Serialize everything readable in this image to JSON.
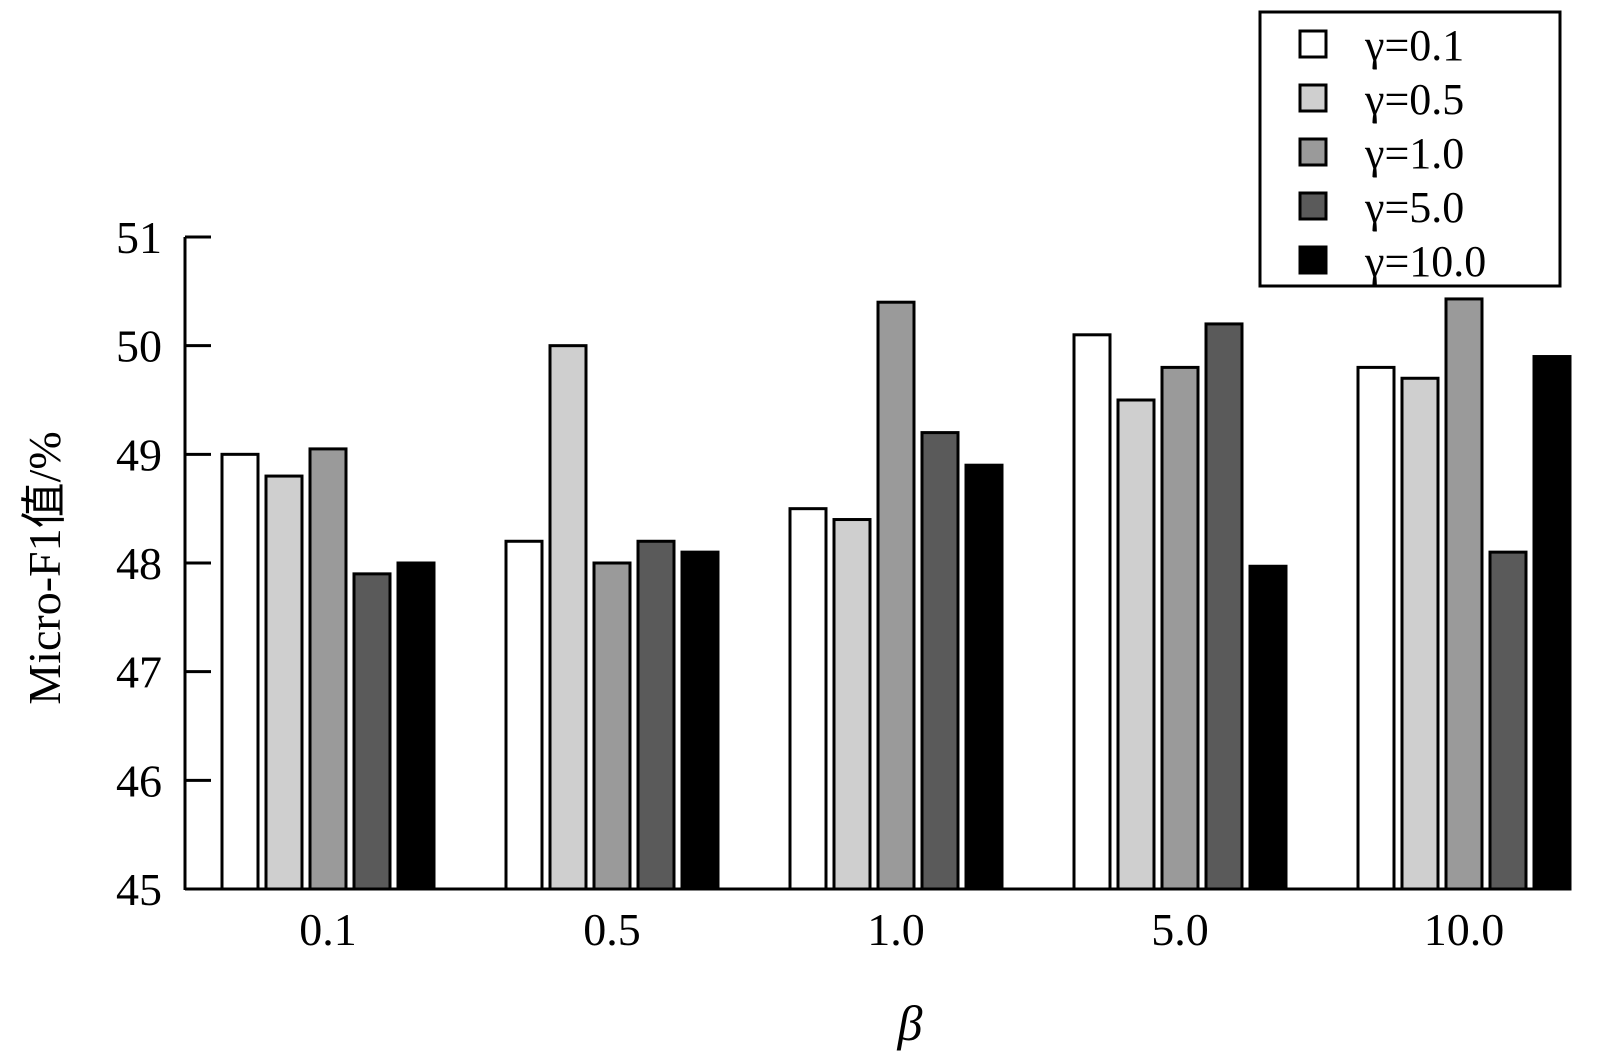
{
  "chart_data": {
    "type": "bar",
    "xlabel": "β",
    "ylabel": "Micro-F1值/%",
    "ylim": [
      45,
      51
    ],
    "yticks": [
      "45",
      "46",
      "47",
      "48",
      "49",
      "50",
      "51"
    ],
    "categories": [
      "0.1",
      "0.5",
      "1.0",
      "5.0",
      "10.0"
    ],
    "legend_position": "top-right",
    "series": [
      {
        "name": "γ=0.1",
        "color": "#ffffff",
        "values": [
          49.0,
          48.2,
          48.5,
          50.1,
          49.8
        ]
      },
      {
        "name": "γ=0.5",
        "color": "#cfcfcf",
        "values": [
          48.8,
          50.0,
          48.4,
          49.5,
          49.7
        ]
      },
      {
        "name": "γ=1.0",
        "color": "#9a9a9a",
        "values": [
          49.05,
          48.0,
          50.4,
          49.8,
          50.43
        ]
      },
      {
        "name": "γ=5.0",
        "color": "#5a5a5a",
        "values": [
          47.9,
          48.2,
          49.2,
          50.2,
          48.1
        ]
      },
      {
        "name": "γ=10.0",
        "color": "#000000",
        "values": [
          48.0,
          48.1,
          48.9,
          47.97,
          49.9
        ]
      }
    ]
  }
}
